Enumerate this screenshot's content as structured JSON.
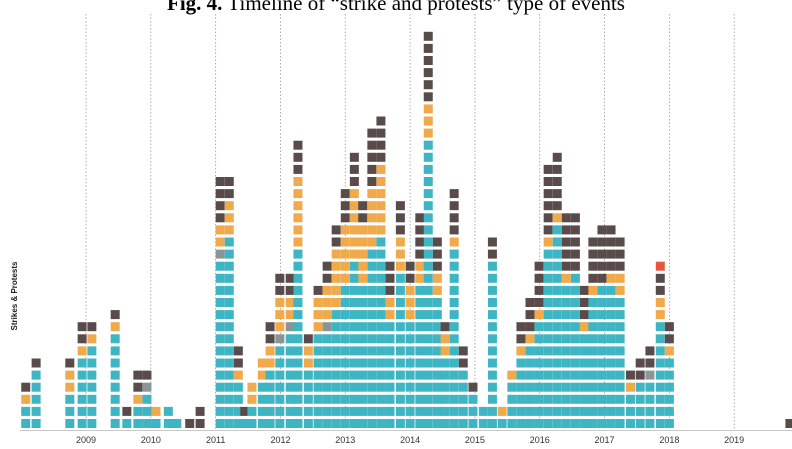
{
  "chart_data": {
    "type": "unit-stack",
    "title_label": "Fig. 4.",
    "title": "Timeline of “strike and protests” type of events",
    "y_label": "Strikes & Protests",
    "x": [
      2008.07,
      2008.23,
      2008.75,
      2008.94,
      2009.09,
      2009.45,
      2009.63,
      2009.8,
      2009.94,
      2010.08,
      2010.27,
      2010.4,
      2010.6,
      2010.76,
      2011.07,
      2011.21,
      2011.35,
      2011.45,
      2011.56,
      2011.72,
      2011.84,
      2011.99,
      2012.15,
      2012.27,
      2012.43,
      2012.58,
      2012.72,
      2012.86,
      2013.0,
      2013.14,
      2013.27,
      2013.41,
      2013.55,
      2013.69,
      2013.85,
      2014.0,
      2014.15,
      2014.28,
      2014.42,
      2014.54,
      2014.68,
      2014.82,
      2014.97,
      2015.13,
      2015.27,
      2015.42,
      2015.57,
      2015.71,
      2015.85,
      2015.99,
      2016.13,
      2016.27,
      2016.41,
      2016.55,
      2016.69,
      2016.82,
      2016.96,
      2017.1,
      2017.24,
      2017.4,
      2017.55,
      2017.7,
      2017.86,
      2018.0,
      2019.86
    ],
    "series": [
      {
        "color": "#3db5c3",
        "values": [
          2,
          5,
          3,
          6,
          7,
          8,
          1,
          2,
          3,
          1,
          2,
          1,
          0,
          0,
          14,
          16,
          4,
          1,
          2,
          4,
          5,
          7,
          8,
          15,
          5,
          8,
          8,
          10,
          12,
          14,
          12,
          15,
          16,
          9,
          13,
          9,
          12,
          24,
          11,
          6,
          15,
          5,
          3,
          2,
          14,
          1,
          4,
          6,
          7,
          9,
          15,
          17,
          12,
          13,
          8,
          11,
          12,
          12,
          11,
          3,
          4,
          4,
          9,
          6,
          0
        ]
      },
      {
        "color": "#8a9696",
        "values": [
          0,
          0,
          0,
          0,
          0,
          0,
          0,
          0,
          1,
          0,
          0,
          0,
          0,
          0,
          1,
          0,
          0,
          0,
          0,
          0,
          0,
          1,
          1,
          0,
          0,
          0,
          1,
          0,
          0,
          0,
          0,
          0,
          0,
          0,
          0,
          0,
          0,
          0,
          0,
          0,
          0,
          0,
          0,
          0,
          0,
          0,
          0,
          0,
          0,
          0,
          0,
          0,
          0,
          0,
          0,
          0,
          0,
          0,
          0,
          0,
          0,
          1,
          0,
          0,
          0
        ]
      },
      {
        "color": "#f0a94b",
        "values": [
          1,
          0,
          2,
          1,
          1,
          1,
          0,
          1,
          0,
          1,
          0,
          0,
          0,
          0,
          2,
          3,
          1,
          0,
          2,
          2,
          2,
          3,
          2,
          6,
          2,
          3,
          3,
          5,
          5,
          6,
          5,
          5,
          6,
          2,
          3,
          3,
          2,
          3,
          2,
          2,
          1,
          0,
          0,
          0,
          0,
          1,
          1,
          1,
          1,
          1,
          1,
          1,
          1,
          0,
          1,
          1,
          0,
          1,
          2,
          1,
          0,
          0,
          2,
          1,
          0
        ]
      },
      {
        "color": "#5a4b4b",
        "values": [
          1,
          1,
          1,
          2,
          1,
          1,
          1,
          2,
          1,
          0,
          0,
          0,
          1,
          2,
          4,
          2,
          2,
          1,
          0,
          0,
          2,
          2,
          2,
          3,
          1,
          1,
          2,
          2,
          3,
          3,
          2,
          5,
          4,
          3,
          3,
          2,
          4,
          6,
          3,
          1,
          4,
          2,
          1,
          0,
          2,
          0,
          0,
          2,
          3,
          4,
          6,
          5,
          5,
          5,
          3,
          4,
          5,
          4,
          3,
          1,
          2,
          2,
          2,
          2,
          1
        ]
      },
      {
        "color": "#e8553e",
        "values": [
          0,
          0,
          0,
          0,
          0,
          0,
          0,
          0,
          0,
          0,
          0,
          0,
          0,
          0,
          0,
          0,
          0,
          0,
          0,
          0,
          0,
          0,
          0,
          0,
          0,
          0,
          0,
          0,
          0,
          0,
          0,
          0,
          0,
          0,
          0,
          0,
          0,
          0,
          0,
          0,
          0,
          0,
          0,
          0,
          0,
          0,
          0,
          0,
          0,
          0,
          0,
          0,
          0,
          0,
          0,
          0,
          0,
          0,
          0,
          0,
          0,
          0,
          1,
          0,
          0
        ]
      }
    ],
    "xlim": [
      2008,
      2020
    ],
    "xticks": [
      2009,
      2010,
      2011,
      2012,
      2013,
      2014,
      2015,
      2016,
      2017,
      2018,
      2019
    ],
    "grid": true
  }
}
